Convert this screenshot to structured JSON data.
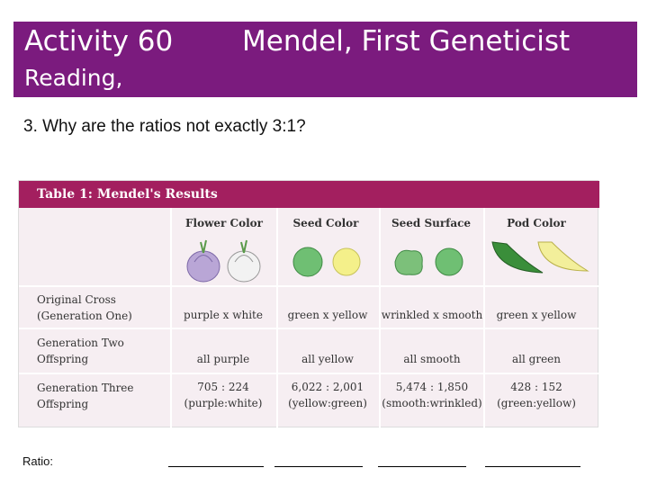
{
  "header": {
    "activity": "Activity 60",
    "title": "Mendel, First Geneticist",
    "subtitle": "Reading,"
  },
  "question": "3. Why are the ratios not exactly 3:1?",
  "table": {
    "title": "Table 1: Mendel's Results",
    "columns": [
      "Flower Color",
      "Seed Color",
      "Seed Surface",
      "Pod Color"
    ],
    "rows": [
      {
        "label_line1": "Original Cross",
        "label_line2": "(Generation One)",
        "cells": [
          "purple x white",
          "green x yellow",
          "wrinkled x smooth",
          "green x yellow"
        ]
      },
      {
        "label_line1": "Generation Two",
        "label_line2": "Offspring",
        "cells": [
          "all purple",
          "all yellow",
          "all smooth",
          "all green"
        ]
      },
      {
        "label_line1": "Generation Three",
        "label_line2": "Offspring",
        "cells_line1": [
          "705 : 224",
          "6,022 : 2,001",
          "5,474 : 1,850",
          "428 : 152"
        ],
        "cells_line2": [
          "(purple:white)",
          "(yellow:green)",
          "(smooth:wrinkled)",
          "(green:yellow)"
        ]
      }
    ],
    "colors": {
      "title_bar": "#a31f5f",
      "body": "#f6eef2",
      "purple_flower": "#b9a6d6",
      "white_flower": "#f2f2f2",
      "green_seed": "#6fbf73",
      "yellow_seed": "#f4f08a",
      "green_pod": "#3a8e3a",
      "yellow_pod": "#f3ef9b"
    }
  },
  "ratio_label": "Ratio:"
}
